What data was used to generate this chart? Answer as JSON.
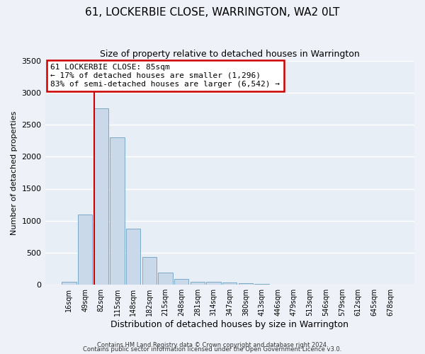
{
  "title": "61, LOCKERBIE CLOSE, WARRINGTON, WA2 0LT",
  "subtitle": "Size of property relative to detached houses in Warrington",
  "xlabel": "Distribution of detached houses by size in Warrington",
  "ylabel": "Number of detached properties",
  "bar_labels": [
    "16sqm",
    "49sqm",
    "82sqm",
    "115sqm",
    "148sqm",
    "182sqm",
    "215sqm",
    "248sqm",
    "281sqm",
    "314sqm",
    "347sqm",
    "380sqm",
    "413sqm",
    "446sqm",
    "479sqm",
    "513sqm",
    "546sqm",
    "579sqm",
    "612sqm",
    "645sqm",
    "678sqm"
  ],
  "bar_values": [
    50,
    1100,
    2750,
    2300,
    880,
    430,
    185,
    95,
    50,
    50,
    30,
    20,
    10,
    5,
    2,
    1,
    1,
    0,
    0,
    0,
    0
  ],
  "bar_color": "#c9d9ea",
  "bar_edge_color": "#7aaac8",
  "vline_index": 2,
  "vline_color": "#cc0000",
  "ylim": [
    0,
    3500
  ],
  "yticks": [
    0,
    500,
    1000,
    1500,
    2000,
    2500,
    3000,
    3500
  ],
  "annotation_title": "61 LOCKERBIE CLOSE: 85sqm",
  "annotation_line1": "← 17% of detached houses are smaller (1,296)",
  "annotation_line2": "83% of semi-detached houses are larger (6,542) →",
  "annotation_box_color": "#cc0000",
  "footnote1": "Contains HM Land Registry data © Crown copyright and database right 2024.",
  "footnote2": "Contains public sector information licensed under the Open Government Licence v3.0.",
  "background_color": "#eef2f8",
  "plot_bg_color": "#e8eef6",
  "grid_color": "#ffffff",
  "figsize": [
    6.0,
    5.0
  ],
  "dpi": 100
}
